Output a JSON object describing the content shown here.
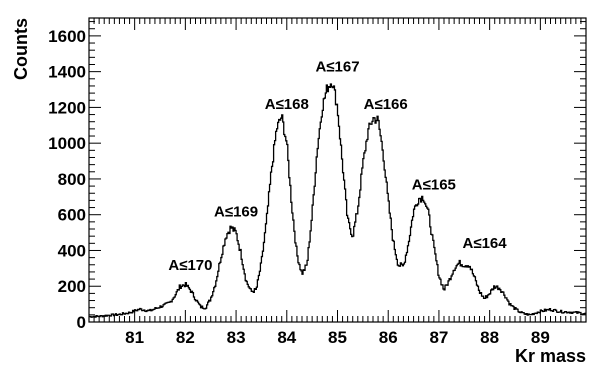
{
  "chart_data": {
    "type": "line",
    "style": "step-histogram",
    "title": "",
    "xlabel": "Kr mass",
    "ylabel": "Counts",
    "xlim": [
      80.1,
      89.9
    ],
    "ylim": [
      0,
      1700
    ],
    "x_ticks": [
      81,
      82,
      83,
      84,
      85,
      86,
      87,
      88,
      89
    ],
    "y_ticks": [
      0,
      200,
      400,
      600,
      800,
      1000,
      1200,
      1400,
      1600
    ],
    "grid": false,
    "legend": "none",
    "line_color": "#000000",
    "series": [
      {
        "x": [
          80.1,
          80.3,
          80.5,
          80.7,
          80.9,
          81.1,
          81.3,
          81.5,
          81.6,
          81.7,
          81.8,
          81.9,
          82.0,
          82.1,
          82.2,
          82.3,
          82.4,
          82.5,
          82.6,
          82.7,
          82.8,
          82.9,
          83.0,
          83.1,
          83.2,
          83.3,
          83.4,
          83.5,
          83.6,
          83.7,
          83.8,
          83.9,
          84.0,
          84.1,
          84.2,
          84.3,
          84.4,
          84.5,
          84.6,
          84.7,
          84.8,
          84.9,
          85.0,
          85.1,
          85.2,
          85.3,
          85.4,
          85.5,
          85.6,
          85.7,
          85.8,
          85.9,
          86.0,
          86.1,
          86.2,
          86.3,
          86.4,
          86.5,
          86.6,
          86.7,
          86.8,
          86.9,
          87.0,
          87.1,
          87.2,
          87.3,
          87.4,
          87.5,
          87.6,
          87.7,
          87.8,
          87.9,
          88.0,
          88.1,
          88.2,
          88.3,
          88.4,
          88.5,
          88.6,
          88.7,
          88.8,
          88.9,
          89.0,
          89.2,
          89.4,
          89.6,
          89.8,
          89.9
        ],
        "values": [
          30,
          32,
          38,
          42,
          52,
          72,
          62,
          85,
          95,
          110,
          150,
          200,
          210,
          180,
          130,
          85,
          80,
          130,
          220,
          360,
          480,
          530,
          500,
          380,
          230,
          170,
          180,
          330,
          560,
          850,
          1080,
          1150,
          1000,
          650,
          380,
          270,
          320,
          600,
          960,
          1200,
          1310,
          1350,
          1200,
          880,
          570,
          480,
          630,
          880,
          1060,
          1140,
          1130,
          950,
          680,
          450,
          320,
          310,
          440,
          620,
          690,
          700,
          600,
          420,
          260,
          180,
          230,
          300,
          330,
          320,
          320,
          250,
          170,
          130,
          160,
          200,
          190,
          150,
          100,
          75,
          55,
          45,
          40,
          50,
          60,
          70,
          58,
          55,
          50,
          45
        ]
      }
    ],
    "annotations": [
      {
        "text": "A≤170",
        "x": 82.1,
        "y": 290
      },
      {
        "text": "A≤169",
        "x": 83.0,
        "y": 590
      },
      {
        "text": "A≤168",
        "x": 84.0,
        "y": 1190
      },
      {
        "text": "A≤167",
        "x": 85.0,
        "y": 1400
      },
      {
        "text": "A≤166",
        "x": 85.95,
        "y": 1190
      },
      {
        "text": "A≤165",
        "x": 86.9,
        "y": 740
      },
      {
        "text": "A≤164",
        "x": 87.9,
        "y": 415
      }
    ]
  }
}
